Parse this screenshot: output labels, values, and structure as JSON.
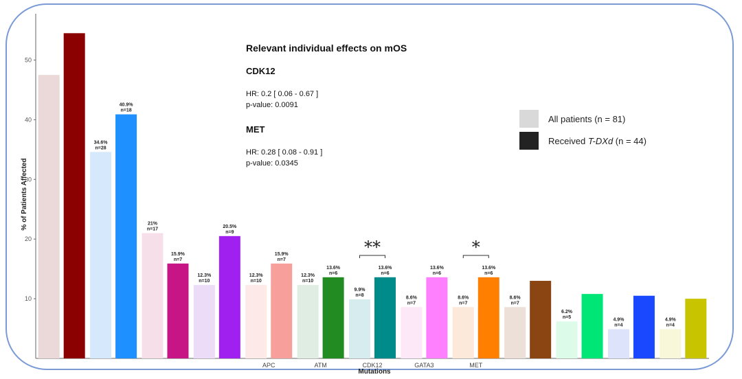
{
  "chart_data": {
    "type": "bar",
    "title": "Relevant individual effects on mOS",
    "xlabel": "Mutations",
    "ylabel": "% of Patients Affected",
    "ylim": [
      0,
      55
    ],
    "yticks": [
      10,
      20,
      30,
      40,
      50
    ],
    "categories": [
      "",
      "",
      "",
      "",
      "APC",
      "ATM",
      "CDK12",
      "GATA3",
      "MET",
      "",
      "",
      "",
      ""
    ],
    "series": [
      {
        "name": "All patients (n = 81)",
        "values": [
          47.5,
          34.6,
          21,
          12.3,
          12.3,
          12.3,
          9.9,
          8.6,
          8.6,
          8.6,
          6.2,
          4.9,
          4.9
        ],
        "labels": [
          "",
          "34.6%",
          "21%",
          "12.3%",
          "12.3%",
          "12.3%",
          "9.9%",
          "8.6%",
          "8.6%",
          "8.6%",
          "6.2%",
          "4.9%",
          "4.9%"
        ],
        "n": [
          "",
          "n=28",
          "n=17",
          "n=10",
          "n=10",
          "n=10",
          "n=8",
          "n=7",
          "n=7",
          "n=7",
          "n=5",
          "n=4",
          "n=4"
        ]
      },
      {
        "name": "Received T-DXd (n = 44)",
        "values": [
          54.5,
          40.9,
          15.9,
          20.5,
          15.9,
          13.6,
          13.6,
          13.6,
          13.6,
          13.0,
          10.8,
          10.5,
          10.0
        ],
        "labels": [
          "",
          "40.9%",
          "15.9%",
          "20.5%",
          "15.9%",
          "13.6%",
          "13.6%",
          "13.6%",
          "13.6%",
          "",
          "",
          "",
          ""
        ],
        "n": [
          "",
          "n=18",
          "n=7",
          "n=9",
          "n=7",
          "n=6",
          "n=6",
          "n=6",
          "n=6",
          "",
          "",
          "",
          ""
        ]
      }
    ],
    "colors_all": [
      "#ebd9d9",
      "#d6e8fb",
      "#f7dfe9",
      "#ecdcf7",
      "#fde9e7",
      "#e0ede2",
      "#d7ecee",
      "#fde8f8",
      "#fde9d9",
      "#ede0d9",
      "#dcfbe8",
      "#dde3fb",
      "#f9f7da"
    ],
    "colors_tdxd": [
      "#8b0000",
      "#1e90ff",
      "#c71585",
      "#a020f0",
      "#f7a09b",
      "#228b22",
      "#008b8b",
      "#ff80ff",
      "#ff8000",
      "#8b4513",
      "#00e676",
      "#1a48ff",
      "#c8c400"
    ],
    "significance": [
      {
        "category": "CDK12",
        "label": "**"
      },
      {
        "category": "MET",
        "label": "*"
      }
    ],
    "legend_position": "right"
  },
  "annotation": {
    "title": "Relevant individual effects on mOS",
    "cdk12": {
      "gene": "CDK12",
      "hr": "HR: 0.2 [ 0.06 - 0.67 ]",
      "p": "p-value: 0.0091"
    },
    "met": {
      "gene": "MET",
      "hr": "HR: 0.28 [ 0.08 - 0.91 ]",
      "p": "p-value: 0.0345"
    }
  },
  "legend": {
    "all_label": "All patients (n = 81)",
    "tdxd_prefix": "Received ",
    "tdxd_italic": "T-DXd",
    "tdxd_suffix": " (n = 44)",
    "all_color": "#d9d9d9",
    "tdxd_color": "#222222"
  }
}
